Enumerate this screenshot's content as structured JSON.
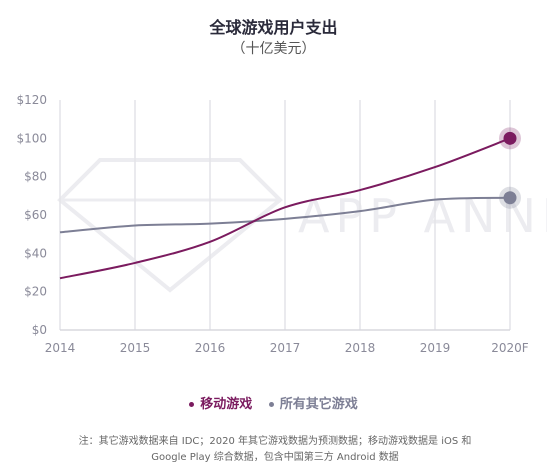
{
  "chart_data": {
    "type": "line",
    "title": "全球游戏用户支出",
    "subtitle": "（十亿美元）",
    "categories": [
      "2014",
      "2015",
      "2016",
      "2017",
      "2018",
      "2019",
      "2020F"
    ],
    "y_ticks": [
      "$0",
      "$20",
      "$40",
      "$60",
      "$80",
      "$100",
      "$120"
    ],
    "ylim": [
      0,
      120
    ],
    "grid": "vertical",
    "legend": "bottom-center",
    "series": [
      {
        "name": "移动游戏",
        "color": "#7b1b5f",
        "values": [
          27,
          35,
          46,
          64,
          73,
          85,
          100
        ]
      },
      {
        "name": "所有其它游戏",
        "color": "#7d7f95",
        "values": [
          51,
          54.5,
          55.5,
          58,
          62,
          68,
          69
        ]
      }
    ],
    "watermark": "APP ANNIE"
  },
  "footnote": {
    "line1": "注：其它游戏数据来自 IDC；2020 年其它游戏数据为预测数据；移动游戏数据是 iOS 和",
    "line2": "Google Play 综合数据，包含中国第三方 Android 数据"
  }
}
